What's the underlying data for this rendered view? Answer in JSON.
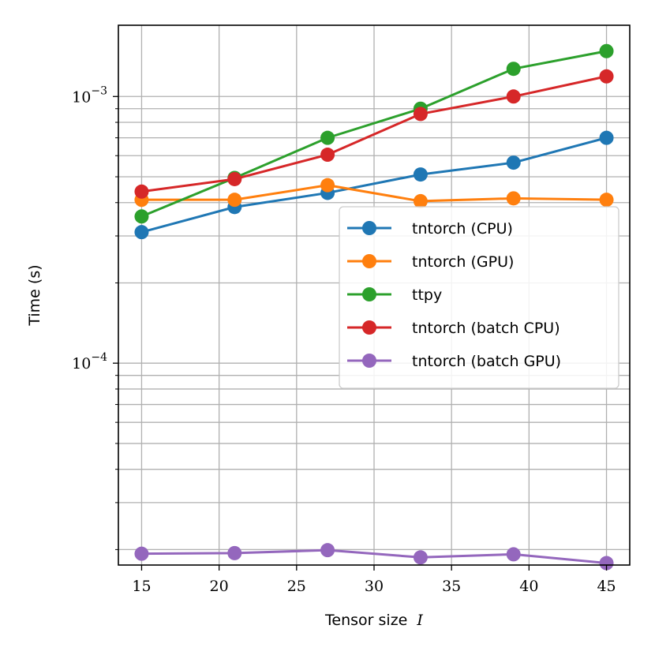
{
  "chart_data": {
    "type": "line",
    "xlabel": "Tensor size",
    "xlabel_symbol": "I",
    "ylabel": "Time (s)",
    "yscale": "log",
    "xlim": [
      13.5,
      46.5
    ],
    "ylim": [
      1.75e-05,
      0.00185
    ],
    "grid": true,
    "grid_minor_y": true,
    "legend_position": "center-right",
    "x_ticks": [
      15,
      20,
      25,
      30,
      35,
      40,
      45
    ],
    "x_tick_labels": [
      "15",
      "20",
      "25",
      "30",
      "35",
      "40",
      "45"
    ],
    "y_major_ticks": [
      {
        "value": 0.0001,
        "base": "10",
        "exponent": "−4"
      },
      {
        "value": 0.001,
        "base": "10",
        "exponent": "−3"
      }
    ],
    "x": [
      15,
      21,
      27,
      33,
      39,
      45
    ],
    "series": [
      {
        "name": "tntorch (CPU)",
        "color": "#1f77b4",
        "values": [
          0.00031,
          0.000385,
          0.000435,
          0.00051,
          0.000565,
          0.0007
        ]
      },
      {
        "name": "tntorch (GPU)",
        "color": "#ff7f0e",
        "values": [
          0.00041,
          0.00041,
          0.000465,
          0.000405,
          0.000415,
          0.00041
        ]
      },
      {
        "name": "ttpy",
        "color": "#2ca02c",
        "values": [
          0.000355,
          0.000495,
          0.0007,
          0.0009,
          0.00127,
          0.00148
        ]
      },
      {
        "name": "tntorch (batch CPU)",
        "color": "#d62728",
        "values": [
          0.00044,
          0.00049,
          0.000605,
          0.00086,
          0.001,
          0.00119
        ]
      },
      {
        "name": "tntorch (batch GPU)",
        "color": "#9467bd",
        "values": [
          1.93e-05,
          1.94e-05,
          1.99e-05,
          1.87e-05,
          1.92e-05,
          1.78e-05
        ]
      }
    ]
  }
}
